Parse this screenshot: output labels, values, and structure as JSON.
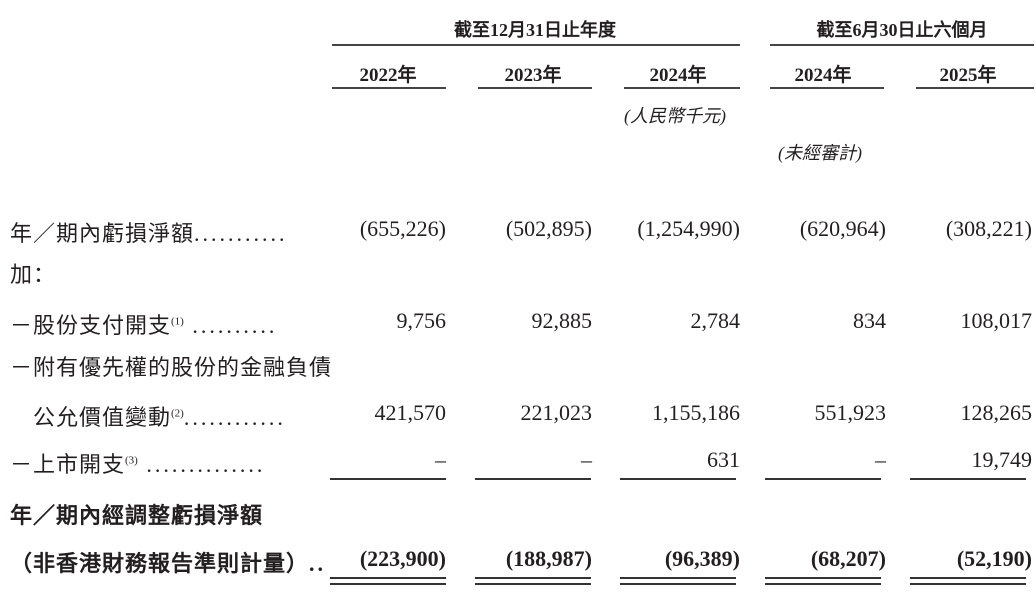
{
  "header": {
    "group_year": "截至12月31日止年度",
    "group_half": "截至6月30日止六個月",
    "years": [
      "2022年",
      "2023年",
      "2024年",
      "2024年",
      "2025年"
    ],
    "unit_note": "(人民幣千元)",
    "unaudited_note": "(未經審計)"
  },
  "rows": [
    {
      "label": "年／期內虧損淨額",
      "note": "",
      "leader": "...........",
      "values": [
        "(655,226)",
        "(502,895)",
        "(1,254,990)",
        "(620,964)",
        "(308,221)"
      ]
    },
    {
      "label": "加：",
      "note": "",
      "leader": "",
      "values": []
    },
    {
      "label": "－股份支付開支",
      "note": "(1)",
      "leader": " ..........",
      "values": [
        "9,756",
        "92,885",
        "2,784",
        "834",
        "108,017"
      ]
    },
    {
      "label": "－附有優先權的股份的金融負債",
      "note": "",
      "leader": "",
      "values": []
    },
    {
      "label": "　公允價值變動",
      "note": "(2)",
      "leader": "............",
      "values": [
        "421,570",
        "221,023",
        "1,155,186",
        "551,923",
        "128,265"
      ]
    },
    {
      "label": "－上市開支",
      "note": "(3)",
      "leader": " ..............",
      "values": [
        "–",
        "–",
        "631",
        "–",
        "19,749"
      ]
    },
    {
      "label": "年／期內經調整虧損淨額",
      "note": "",
      "leader": "",
      "values": []
    },
    {
      "label": "（非香港財務報告準則計量）",
      "note": "",
      "leader": "..",
      "values": [
        "(223,900)",
        "(188,987)",
        "(96,389)",
        "(68,207)",
        "(52,190)"
      ]
    }
  ]
}
